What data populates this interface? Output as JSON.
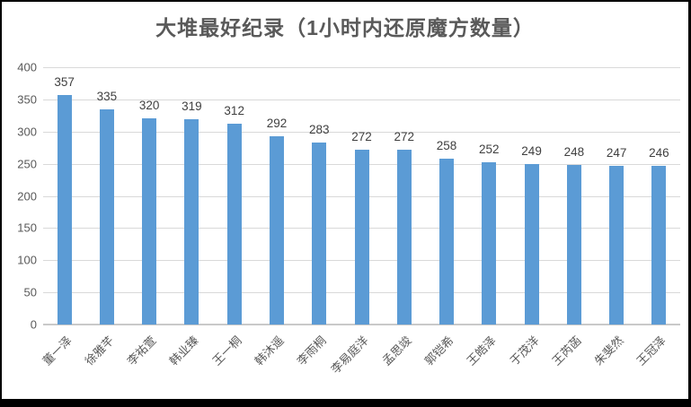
{
  "chart_data": {
    "type": "bar",
    "title": "大堆最好纪录（1小时内还原魔方数量）",
    "categories": [
      "董一泽",
      "徐雅芊",
      "李祐萱",
      "韩业臻",
      "王一桐",
      "韩沐遥",
      "李雨桐",
      "李易庭洋",
      "孟思竣",
      "郭铠希",
      "王皓泽",
      "于茂洋",
      "王芮菡",
      "朱斐然",
      "王冠泽"
    ],
    "values": [
      357,
      335,
      320,
      319,
      312,
      292,
      283,
      272,
      272,
      258,
      252,
      249,
      248,
      247,
      246
    ],
    "xlabel": "",
    "ylabel": "",
    "ylim": [
      0,
      400
    ],
    "yticks": [
      0,
      50,
      100,
      150,
      200,
      250,
      300,
      350,
      400
    ],
    "grid": true,
    "legend_position": "none",
    "data_labels": true,
    "x_label_rotation_deg": 45,
    "colors": {
      "bar": "#5b9bd5",
      "gridline": "#d9d9d9",
      "axis_line": "#c9c9c9",
      "axis_text": "#595959",
      "value_label_text": "#3f3f3f",
      "title_text": "#595959",
      "frame_border": "#000000",
      "background": "#ffffff"
    }
  }
}
